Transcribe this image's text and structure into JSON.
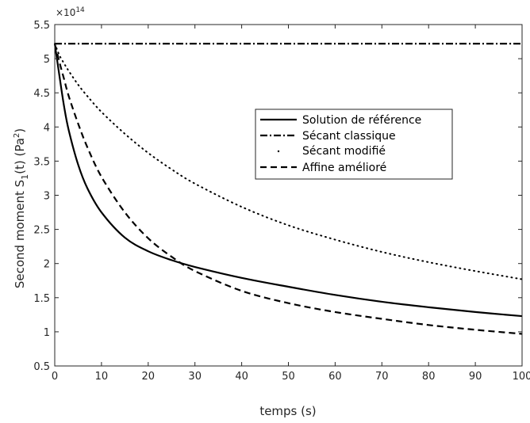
{
  "chart_data": {
    "type": "line",
    "xlabel": "temps (s)",
    "ylabel": {
      "prefix": "Second moment S",
      "subscript": "1",
      "middle": "(t)  (Pa",
      "superscript": "2",
      "suffix": ")"
    },
    "exponent": {
      "base": "×10",
      "power": "14"
    },
    "xlim": [
      0,
      100
    ],
    "ylim": [
      0.5,
      5.5
    ],
    "xticks": [
      0,
      10,
      20,
      30,
      40,
      50,
      60,
      70,
      80,
      90,
      100
    ],
    "yticks": [
      0.5,
      1,
      1.5,
      2,
      2.5,
      3,
      3.5,
      4,
      4.5,
      5,
      5.5
    ],
    "grid": false,
    "legend_position": "upper-right-center",
    "x": [
      0,
      1,
      2,
      3,
      5,
      7,
      10,
      15,
      20,
      25,
      30,
      40,
      50,
      60,
      70,
      80,
      90,
      100
    ],
    "series": [
      {
        "name": "Solution de référence",
        "style": "solid",
        "values": [
          5.22,
          4.75,
          4.3,
          3.95,
          3.45,
          3.1,
          2.75,
          2.38,
          2.18,
          2.05,
          1.95,
          1.79,
          1.66,
          1.54,
          1.44,
          1.36,
          1.29,
          1.23
        ]
      },
      {
        "name": "Sécant  classique",
        "style": "dashdot",
        "values": [
          5.22,
          5.22,
          5.22,
          5.22,
          5.22,
          5.22,
          5.22,
          5.22,
          5.22,
          5.22,
          5.22,
          5.22,
          5.22,
          5.22,
          5.22,
          5.22,
          5.22,
          5.22
        ]
      },
      {
        "name": "Sécant modifié",
        "style": "dotted",
        "values": [
          5.22,
          5.05,
          4.93,
          4.82,
          4.62,
          4.45,
          4.22,
          3.9,
          3.62,
          3.38,
          3.17,
          2.83,
          2.56,
          2.35,
          2.17,
          2.02,
          1.89,
          1.77
        ]
      },
      {
        "name": "Affine amélioré",
        "style": "dashed",
        "values": [
          5.22,
          4.95,
          4.7,
          4.45,
          4.05,
          3.7,
          3.27,
          2.75,
          2.37,
          2.1,
          1.89,
          1.6,
          1.42,
          1.29,
          1.19,
          1.1,
          1.03,
          0.97
        ]
      }
    ]
  }
}
